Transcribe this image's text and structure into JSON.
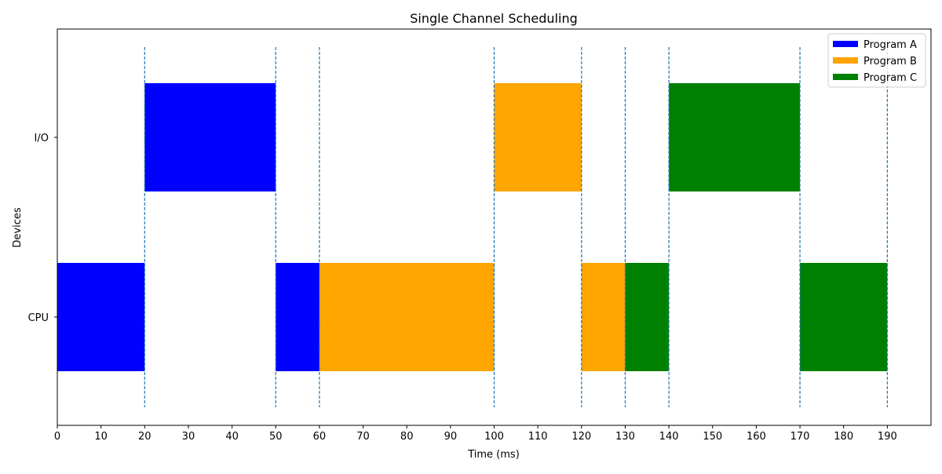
{
  "chart_data": {
    "type": "gantt",
    "title": "Single Channel Scheduling",
    "xlabel": "Time (ms)",
    "ylabel": "Devices",
    "xlim": [
      0,
      200
    ],
    "xticks": [
      0,
      10,
      20,
      30,
      40,
      50,
      60,
      70,
      80,
      90,
      100,
      110,
      120,
      130,
      140,
      150,
      160,
      170,
      180,
      190
    ],
    "categories": [
      "CPU",
      "I/O"
    ],
    "legend_position": "top-right",
    "grid": false,
    "markers": {
      "style": "dashed",
      "color": "#1f77b4",
      "times": [
        20,
        50,
        60,
        100,
        120,
        130,
        140,
        170,
        190
      ]
    },
    "series": [
      {
        "name": "Program A",
        "color": "#0000ff",
        "segments": [
          {
            "device": "CPU",
            "start": 0,
            "end": 20
          },
          {
            "device": "I/O",
            "start": 20,
            "end": 50
          },
          {
            "device": "CPU",
            "start": 50,
            "end": 60
          }
        ]
      },
      {
        "name": "Program B",
        "color": "#ffa500",
        "segments": [
          {
            "device": "CPU",
            "start": 60,
            "end": 100
          },
          {
            "device": "I/O",
            "start": 100,
            "end": 120
          },
          {
            "device": "CPU",
            "start": 120,
            "end": 130
          }
        ]
      },
      {
        "name": "Program C",
        "color": "#008000",
        "segments": [
          {
            "device": "CPU",
            "start": 130,
            "end": 140
          },
          {
            "device": "I/O",
            "start": 140,
            "end": 170
          },
          {
            "device": "CPU",
            "start": 170,
            "end": 190
          }
        ]
      }
    ]
  }
}
